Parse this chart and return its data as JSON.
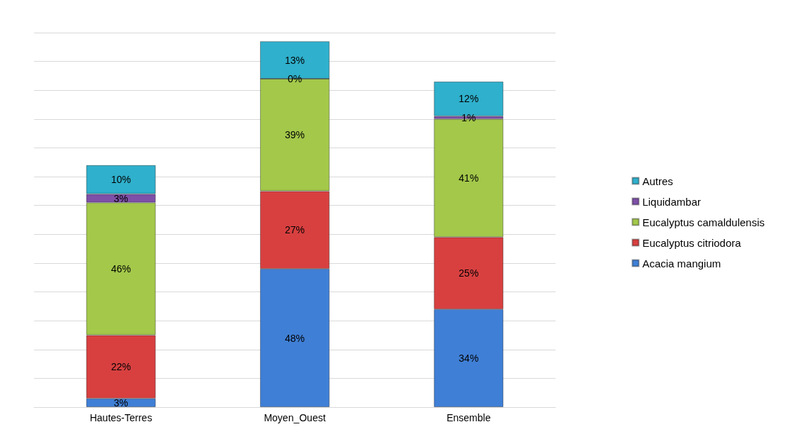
{
  "chart_data": {
    "type": "bar",
    "stacked": true,
    "grid": "y",
    "legend": "right",
    "categories": [
      "Hautes-Terres",
      "Moyen_Ouest",
      "Ensemble"
    ],
    "series": [
      {
        "name": "Acacia mangium",
        "color": "#3f7fd6",
        "values": [
          3,
          48,
          34
        ],
        "value_labels": [
          "3%",
          "48%",
          "34%"
        ]
      },
      {
        "name": "Eucalyptus citriodora",
        "color": "#d84040",
        "values": [
          22,
          27,
          25
        ],
        "value_labels": [
          "22%",
          "27%",
          "25%"
        ]
      },
      {
        "name": "Eucalyptus camaldulensis",
        "color": "#a3c84a",
        "values": [
          46,
          39,
          41
        ],
        "value_labels": [
          "46%",
          "39%",
          "41%"
        ]
      },
      {
        "name": "Liquidambar",
        "color": "#7e50a8",
        "values": [
          3,
          0,
          1
        ],
        "value_labels": [
          "3%",
          "0%",
          "1%"
        ]
      },
      {
        "name": "Autres",
        "color": "#2fb0cc",
        "values": [
          10,
          13,
          12
        ],
        "value_labels": [
          "10%",
          "13%",
          "12%"
        ]
      }
    ]
  }
}
